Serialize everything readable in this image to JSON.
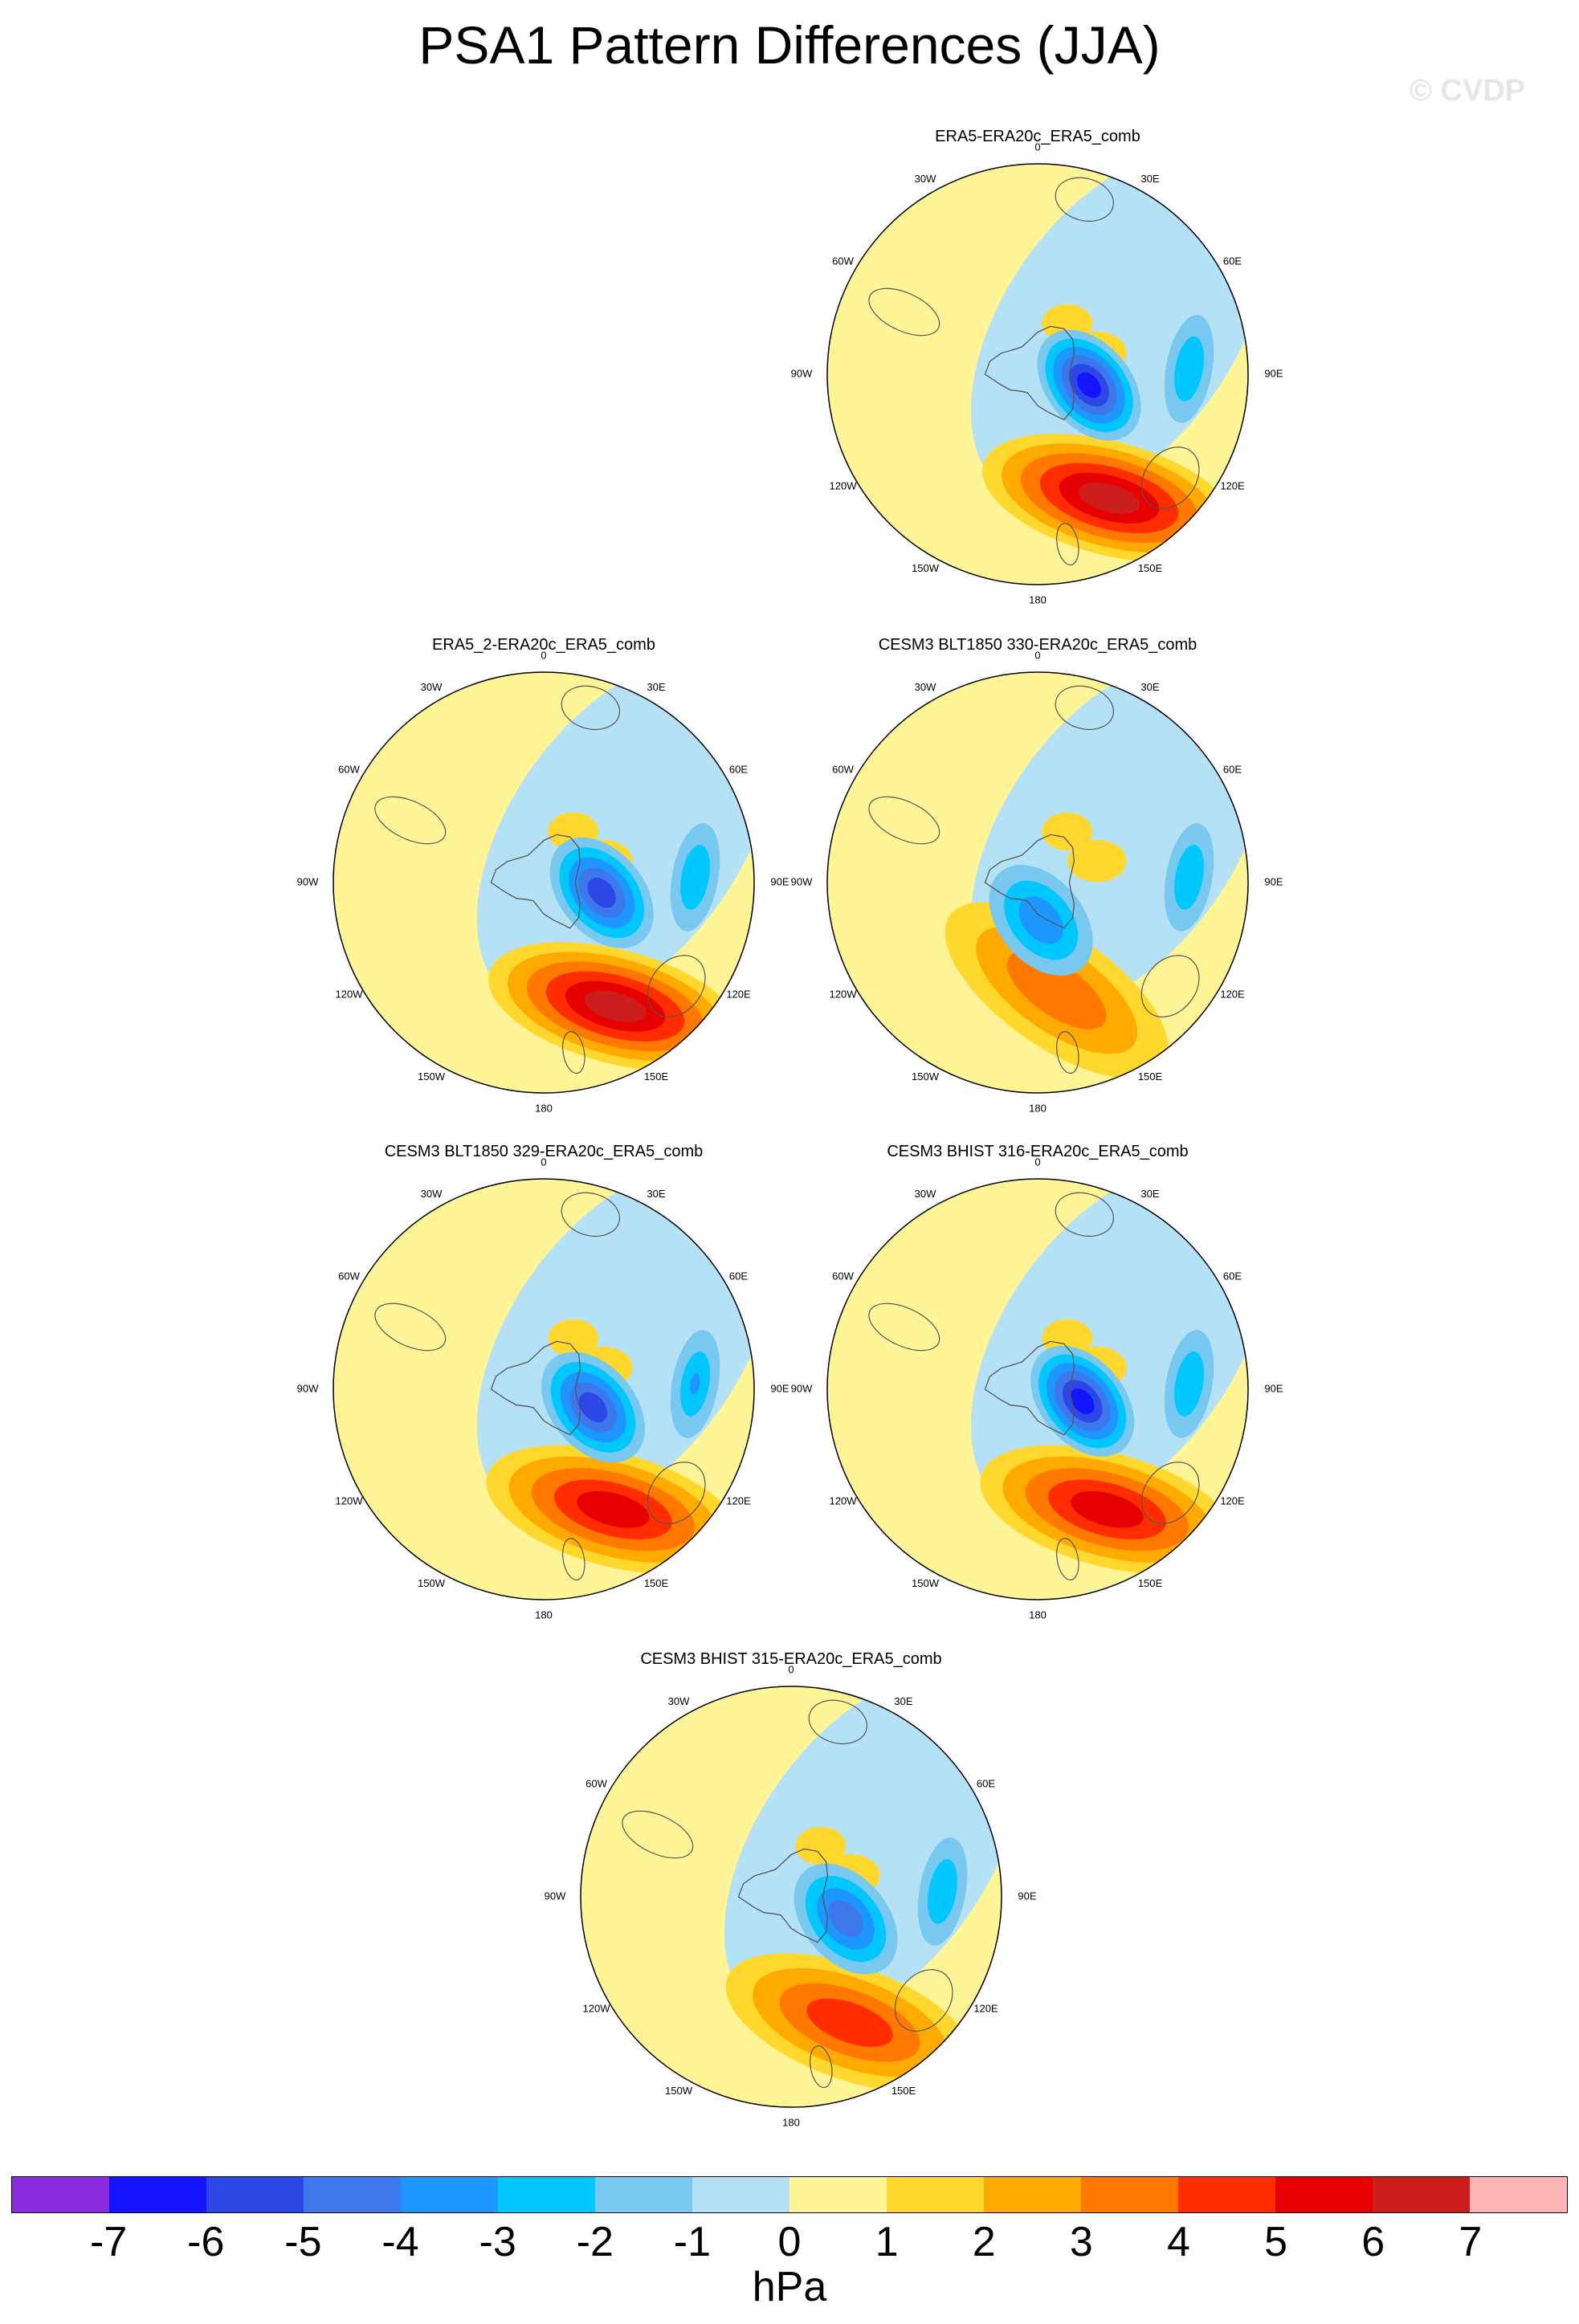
{
  "title": "PSA1 Pattern Differences (JJA)",
  "watermark": "© CVDP",
  "units": "hPa",
  "colorbar": {
    "colors": [
      "#8a2be2",
      "#1414ff",
      "#2d46e6",
      "#3c78eb",
      "#1e96ff",
      "#00c8ff",
      "#78c8f0",
      "#b4e1f5",
      "#fff596",
      "#ffd72d",
      "#ffaa00",
      "#ff7800",
      "#ff2d00",
      "#e60000",
      "#cd1e1e",
      "#ffb4b4"
    ],
    "ticks": [
      "-7",
      "-6",
      "-5",
      "-4",
      "-3",
      "-2",
      "-1",
      "0",
      "1",
      "2",
      "3",
      "4",
      "5",
      "6",
      "7"
    ]
  },
  "lon_labels": [
    "0",
    "30E",
    "60E",
    "90E",
    "120E",
    "150E",
    "180",
    "150W",
    "120W",
    "90W",
    "60W",
    "30W"
  ],
  "panels": [
    {
      "name": "ERA5-ERA20c_ERA5_comb",
      "low": -6,
      "high": 6,
      "low_ang": 102,
      "low_r": 0.25,
      "high_ang": 150,
      "high_r": 0.68,
      "east_low": -2
    },
    {
      "name": "ERA5_2-ERA20c_ERA5_comb",
      "low": -5,
      "high": 6,
      "low_ang": 100,
      "low_r": 0.28,
      "high_ang": 150,
      "high_r": 0.68,
      "east_low": -2
    },
    {
      "name": "CESM3 BLT1850 330-ERA20c_ERA5_comb",
      "low": -3,
      "high": 3,
      "low_ang": 175,
      "low_r": 0.18,
      "high_ang": 170,
      "high_r": 0.52,
      "east_low": -2
    },
    {
      "name": "CESM3 BLT1850 329-ERA20c_ERA5_comb",
      "low": -5,
      "high": 5,
      "low_ang": 110,
      "low_r": 0.25,
      "high_ang": 150,
      "high_r": 0.66,
      "east_low": -3
    },
    {
      "name": "CESM3 BHIST 316-ERA20c_ERA5_comb",
      "low": -6,
      "high": 5,
      "low_ang": 105,
      "low_r": 0.22,
      "high_ang": 150,
      "high_r": 0.66,
      "east_low": -2
    },
    {
      "name": "CESM3 BHIST 315-ERA20c_ERA5_comb",
      "low": -4,
      "high": 4,
      "low_ang": 112,
      "low_r": 0.28,
      "high_ang": 155,
      "high_r": 0.66,
      "east_low": -2
    }
  ]
}
